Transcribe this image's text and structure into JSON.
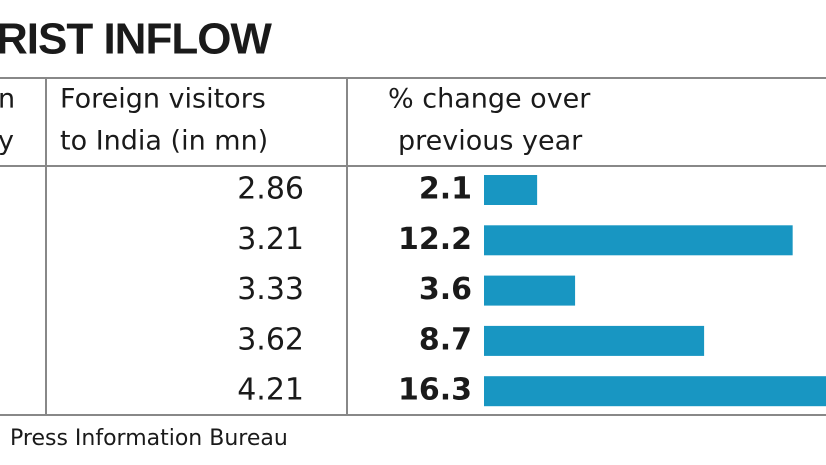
{
  "title": "RIST INFLOW",
  "table": {
    "headers": [
      [
        "n",
        "y"
      ],
      [
        "Foreign visitors",
        "to India (in mn)"
      ],
      [
        "% change over",
        "previous year"
      ]
    ],
    "bar_color": "#1896c2",
    "rows": [
      {
        "visitors": 2.86,
        "change": 2.1
      },
      {
        "visitors": 3.21,
        "change": 12.2
      },
      {
        "visitors": 3.33,
        "change": 3.6
      },
      {
        "visitors": 3.62,
        "change": 8.7
      },
      {
        "visitors": 4.21,
        "change": 16.3
      }
    ]
  },
  "source": "Press Information Bureau"
}
